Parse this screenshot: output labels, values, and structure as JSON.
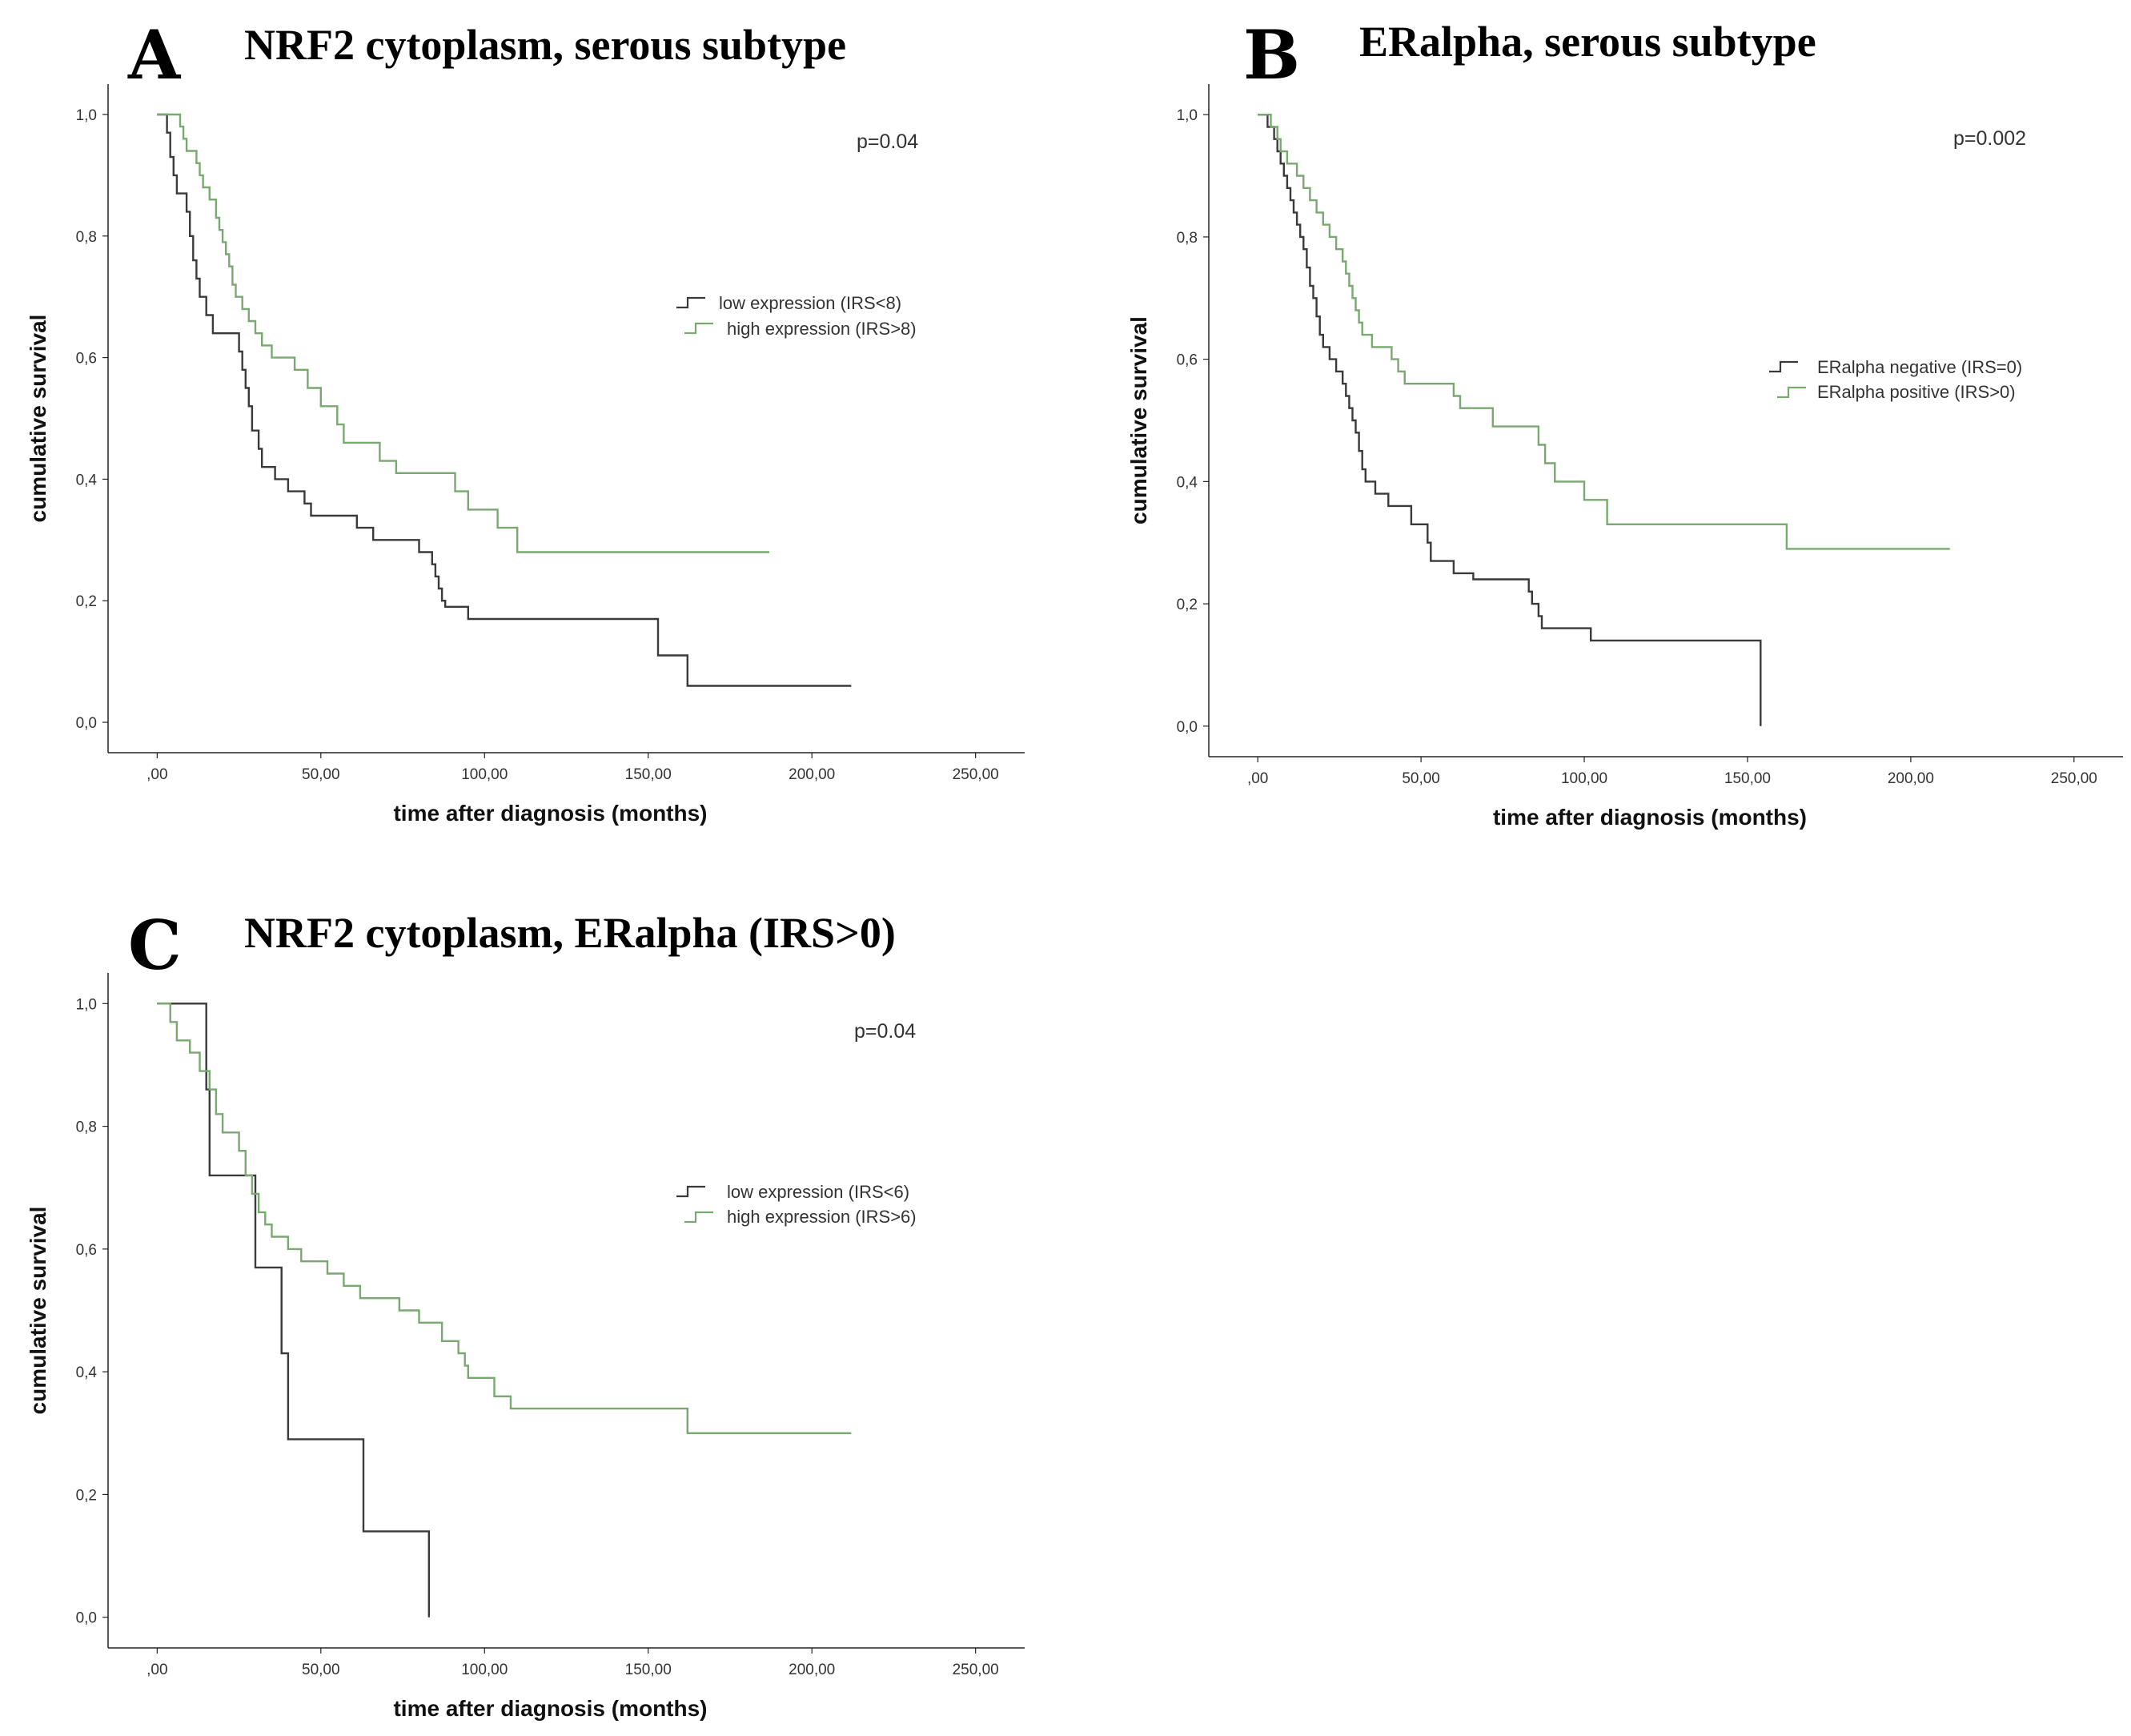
{
  "colors": {
    "low": "#3a3a3a",
    "high": "#79a870",
    "axis": "#222222"
  },
  "chart_data": [
    {
      "type": "line",
      "panel": "A",
      "title": "NRF2 cytoplasm, serous subtype",
      "xlabel": "time after diagnosis (months)",
      "ylabel": "cumulative survival",
      "xlim": [
        -15,
        265
      ],
      "ylim": [
        -0.05,
        1.05
      ],
      "xticks": [
        0,
        50,
        100,
        150,
        200,
        250
      ],
      "xtick_labels": [
        ",00",
        "50,00",
        "100,00",
        "150,00",
        "200,00",
        "250,00"
      ],
      "yticks": [
        0,
        0.2,
        0.4,
        0.6,
        0.8,
        1.0
      ],
      "ytick_labels": [
        "0,0",
        "0,2",
        "0,4",
        "0,6",
        "0,8",
        "1,0"
      ],
      "pvalue": "p=0.04",
      "legend_position": "right",
      "series": [
        {
          "name": "low expression (IRS<8)",
          "color_key": "low",
          "points": [
            [
              0,
              1.0
            ],
            [
              3,
              0.97
            ],
            [
              4,
              0.93
            ],
            [
              5,
              0.9
            ],
            [
              6,
              0.87
            ],
            [
              9,
              0.84
            ],
            [
              10,
              0.8
            ],
            [
              11,
              0.76
            ],
            [
              12,
              0.73
            ],
            [
              13,
              0.7
            ],
            [
              15,
              0.67
            ],
            [
              17,
              0.64
            ],
            [
              25,
              0.61
            ],
            [
              26,
              0.58
            ],
            [
              27,
              0.55
            ],
            [
              28,
              0.52
            ],
            [
              29,
              0.48
            ],
            [
              31,
              0.45
            ],
            [
              32,
              0.42
            ],
            [
              36,
              0.4
            ],
            [
              40,
              0.38
            ],
            [
              45,
              0.36
            ],
            [
              47,
              0.34
            ],
            [
              61,
              0.32
            ],
            [
              66,
              0.3
            ],
            [
              80,
              0.28
            ],
            [
              84,
              0.26
            ],
            [
              85,
              0.24
            ],
            [
              86,
              0.22
            ],
            [
              87,
              0.2
            ],
            [
              88,
              0.19
            ],
            [
              95,
              0.17
            ],
            [
              153,
              0.11
            ],
            [
              162,
              0.06
            ],
            [
              212,
              0.06
            ]
          ]
        },
        {
          "name": "high expression (IRS>8)",
          "color_key": "high",
          "points": [
            [
              0,
              1.0
            ],
            [
              7,
              0.98
            ],
            [
              8,
              0.96
            ],
            [
              9,
              0.94
            ],
            [
              12,
              0.92
            ],
            [
              13,
              0.9
            ],
            [
              14,
              0.88
            ],
            [
              16,
              0.86
            ],
            [
              18,
              0.83
            ],
            [
              19,
              0.81
            ],
            [
              20,
              0.79
            ],
            [
              21,
              0.77
            ],
            [
              22,
              0.75
            ],
            [
              23,
              0.72
            ],
            [
              24,
              0.7
            ],
            [
              26,
              0.68
            ],
            [
              28,
              0.66
            ],
            [
              30,
              0.64
            ],
            [
              32,
              0.62
            ],
            [
              35,
              0.6
            ],
            [
              42,
              0.58
            ],
            [
              46,
              0.55
            ],
            [
              50,
              0.52
            ],
            [
              55,
              0.49
            ],
            [
              57,
              0.46
            ],
            [
              68,
              0.43
            ],
            [
              73,
              0.41
            ],
            [
              91,
              0.38
            ],
            [
              95,
              0.35
            ],
            [
              104,
              0.32
            ],
            [
              110,
              0.28
            ],
            [
              187,
              0.28
            ]
          ]
        }
      ]
    },
    {
      "type": "line",
      "panel": "B",
      "title": "ERalpha, serous subtype",
      "xlabel": "time after diagnosis (months)",
      "ylabel": "cumulative survival",
      "xlim": [
        -15,
        265
      ],
      "ylim": [
        -0.05,
        1.05
      ],
      "xticks": [
        0,
        50,
        100,
        150,
        200,
        250
      ],
      "xtick_labels": [
        ",00",
        "50,00",
        "100,00",
        "150,00",
        "200,00",
        "250,00"
      ],
      "yticks": [
        0,
        0.2,
        0.4,
        0.6,
        0.8,
        1.0
      ],
      "ytick_labels": [
        "0,0",
        "0,2",
        "0,4",
        "0,6",
        "0,8",
        "1,0"
      ],
      "pvalue": "p=0.002",
      "legend_position": "right",
      "series": [
        {
          "name": "ERalpha negative (IRS=0)",
          "color_key": "low",
          "points": [
            [
              0,
              1.0
            ],
            [
              3,
              0.98
            ],
            [
              5,
              0.96
            ],
            [
              6,
              0.94
            ],
            [
              7,
              0.92
            ],
            [
              8,
              0.9
            ],
            [
              9,
              0.88
            ],
            [
              10,
              0.86
            ],
            [
              11,
              0.84
            ],
            [
              12,
              0.82
            ],
            [
              13,
              0.8
            ],
            [
              14,
              0.78
            ],
            [
              15,
              0.75
            ],
            [
              16,
              0.72
            ],
            [
              17,
              0.7
            ],
            [
              18,
              0.67
            ],
            [
              19,
              0.64
            ],
            [
              20,
              0.62
            ],
            [
              22,
              0.6
            ],
            [
              24,
              0.58
            ],
            [
              26,
              0.56
            ],
            [
              27,
              0.54
            ],
            [
              28,
              0.52
            ],
            [
              29,
              0.5
            ],
            [
              30,
              0.48
            ],
            [
              31,
              0.45
            ],
            [
              32,
              0.42
            ],
            [
              33,
              0.4
            ],
            [
              36,
              0.38
            ],
            [
              40,
              0.36
            ],
            [
              47,
              0.33
            ],
            [
              52,
              0.3
            ],
            [
              53,
              0.27
            ],
            [
              60,
              0.25
            ],
            [
              66,
              0.24
            ],
            [
              83,
              0.22
            ],
            [
              84,
              0.2
            ],
            [
              86,
              0.18
            ],
            [
              87,
              0.16
            ],
            [
              102,
              0.14
            ],
            [
              154,
              0.14
            ],
            [
              154,
              0.0
            ]
          ]
        },
        {
          "name": "ERalpha positive (IRS>0)",
          "color_key": "high",
          "points": [
            [
              0,
              1.0
            ],
            [
              4,
              0.98
            ],
            [
              6,
              0.96
            ],
            [
              7,
              0.94
            ],
            [
              9,
              0.92
            ],
            [
              12,
              0.9
            ],
            [
              14,
              0.88
            ],
            [
              16,
              0.86
            ],
            [
              18,
              0.84
            ],
            [
              20,
              0.82
            ],
            [
              22,
              0.8
            ],
            [
              24,
              0.78
            ],
            [
              26,
              0.76
            ],
            [
              27,
              0.74
            ],
            [
              28,
              0.72
            ],
            [
              29,
              0.7
            ],
            [
              30,
              0.68
            ],
            [
              31,
              0.66
            ],
            [
              32,
              0.64
            ],
            [
              35,
              0.62
            ],
            [
              41,
              0.6
            ],
            [
              43,
              0.58
            ],
            [
              45,
              0.56
            ],
            [
              60,
              0.54
            ],
            [
              62,
              0.52
            ],
            [
              72,
              0.49
            ],
            [
              86,
              0.46
            ],
            [
              88,
              0.43
            ],
            [
              91,
              0.4
            ],
            [
              100,
              0.37
            ],
            [
              107,
              0.33
            ],
            [
              162,
              0.29
            ],
            [
              212,
              0.29
            ]
          ]
        }
      ]
    },
    {
      "type": "line",
      "panel": "C",
      "title": "NRF2 cytoplasm, ERalpha (IRS>0)",
      "xlabel": "time after diagnosis (months)",
      "ylabel": "cumulative survival",
      "xlim": [
        -15,
        265
      ],
      "ylim": [
        -0.05,
        1.05
      ],
      "xticks": [
        0,
        50,
        100,
        150,
        200,
        250
      ],
      "xtick_labels": [
        ",00",
        "50,00",
        "100,00",
        "150,00",
        "200,00",
        "250,00"
      ],
      "yticks": [
        0,
        0.2,
        0.4,
        0.6,
        0.8,
        1.0
      ],
      "ytick_labels": [
        "0,0",
        "0,2",
        "0,4",
        "0,6",
        "0,8",
        "1,0"
      ],
      "pvalue": "p=0.04",
      "legend_position": "right",
      "series": [
        {
          "name": "low expression (IRS<6)",
          "color_key": "low",
          "points": [
            [
              0,
              1.0
            ],
            [
              15,
              1.0
            ],
            [
              15,
              0.86
            ],
            [
              16,
              0.72
            ],
            [
              30,
              0.57
            ],
            [
              38,
              0.43
            ],
            [
              40,
              0.29
            ],
            [
              63,
              0.14
            ],
            [
              83,
              0.0
            ]
          ]
        },
        {
          "name": "high expression (IRS>6)",
          "color_key": "high",
          "points": [
            [
              0,
              1.0
            ],
            [
              4,
              0.97
            ],
            [
              6,
              0.94
            ],
            [
              10,
              0.92
            ],
            [
              13,
              0.89
            ],
            [
              16,
              0.86
            ],
            [
              18,
              0.82
            ],
            [
              20,
              0.79
            ],
            [
              25,
              0.76
            ],
            [
              27,
              0.72
            ],
            [
              29,
              0.69
            ],
            [
              31,
              0.66
            ],
            [
              33,
              0.64
            ],
            [
              35,
              0.62
            ],
            [
              40,
              0.6
            ],
            [
              44,
              0.58
            ],
            [
              52,
              0.56
            ],
            [
              57,
              0.54
            ],
            [
              62,
              0.52
            ],
            [
              74,
              0.5
            ],
            [
              80,
              0.48
            ],
            [
              87,
              0.45
            ],
            [
              92,
              0.43
            ],
            [
              94,
              0.41
            ],
            [
              95,
              0.39
            ],
            [
              103,
              0.36
            ],
            [
              108,
              0.34
            ],
            [
              162,
              0.3
            ],
            [
              212,
              0.3
            ]
          ]
        }
      ]
    }
  ]
}
